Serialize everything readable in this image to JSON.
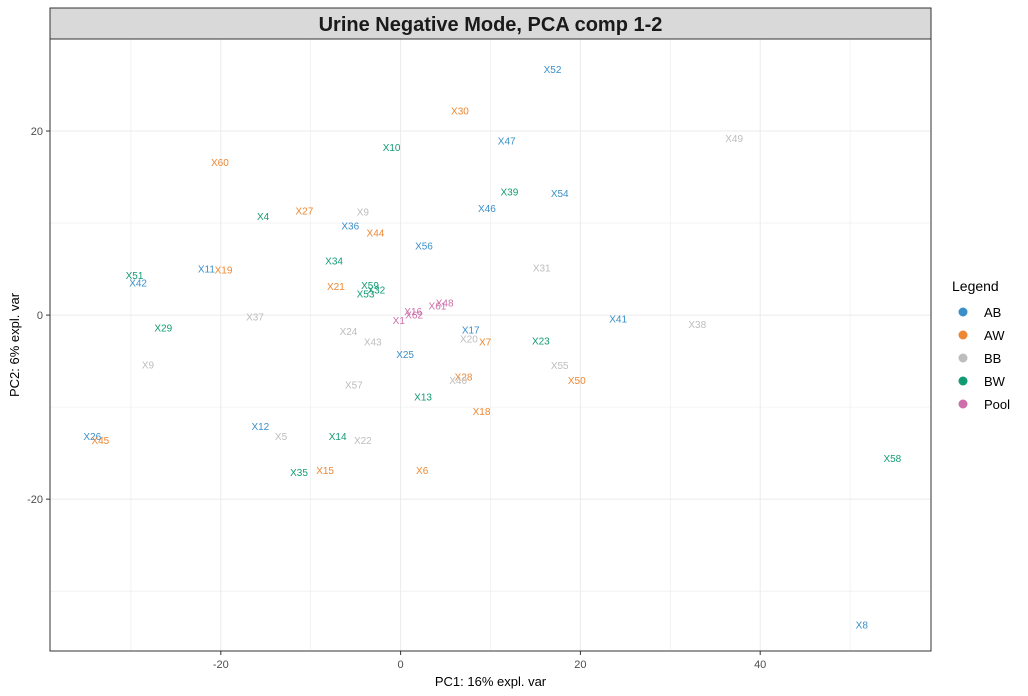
{
  "chart_data": {
    "type": "scatter",
    "title": "Urine Negative Mode, PCA comp 1-2",
    "xlabel": "PC1: 16% expl. var",
    "ylabel": "PC2: 6% expl. var",
    "xlim": [
      -39,
      59
    ],
    "ylim": [
      -36.5,
      30
    ],
    "xticks": [
      -20,
      0,
      20,
      40
    ],
    "yticks": [
      -20,
      0,
      20
    ],
    "grid": true,
    "legend_title": "Legend",
    "legend_position": "right",
    "groups": [
      {
        "name": "AB",
        "color": "#3A8FC9"
      },
      {
        "name": "AW",
        "color": "#EE8733"
      },
      {
        "name": "BB",
        "color": "#BDBDBD"
      },
      {
        "name": "BW",
        "color": "#129B73"
      },
      {
        "name": "Pool",
        "color": "#CD6FAA"
      }
    ],
    "points": [
      {
        "label": "X52",
        "group": "AB",
        "x": 16.9,
        "y": 26.7
      },
      {
        "label": "X47",
        "group": "AB",
        "x": 11.8,
        "y": 18.9
      },
      {
        "label": "X54",
        "group": "AB",
        "x": 17.7,
        "y": 13.2
      },
      {
        "label": "X46",
        "group": "AB",
        "x": 9.6,
        "y": 11.6
      },
      {
        "label": "X36",
        "group": "AB",
        "x": -5.6,
        "y": 9.7
      },
      {
        "label": "X56",
        "group": "AB",
        "x": 2.6,
        "y": 7.5
      },
      {
        "label": "X11",
        "group": "AB",
        "x": -21.6,
        "y": 5.0
      },
      {
        "label": "X42",
        "group": "AB",
        "x": -29.2,
        "y": 3.5
      },
      {
        "label": "X41",
        "group": "AB",
        "x": 24.2,
        "y": -0.4
      },
      {
        "label": "X17",
        "group": "AB",
        "x": 7.8,
        "y": -1.6
      },
      {
        "label": "X25",
        "group": "AB",
        "x": 0.5,
        "y": -4.3
      },
      {
        "label": "X12",
        "group": "AB",
        "x": -15.6,
        "y": -12.1
      },
      {
        "label": "X26",
        "group": "AB",
        "x": -34.3,
        "y": -13.2
      },
      {
        "label": "X8",
        "group": "AB",
        "x": 51.3,
        "y": -33.7
      },
      {
        "label": "X30",
        "group": "AW",
        "x": 6.6,
        "y": 22.2
      },
      {
        "label": "X60",
        "group": "AW",
        "x": -20.1,
        "y": 16.6
      },
      {
        "label": "X27",
        "group": "AW",
        "x": -10.7,
        "y": 11.3
      },
      {
        "label": "X44",
        "group": "AW",
        "x": -2.8,
        "y": 8.9
      },
      {
        "label": "X19",
        "group": "AW",
        "x": -19.7,
        "y": 4.9
      },
      {
        "label": "X21",
        "group": "AW",
        "x": -7.2,
        "y": 3.1
      },
      {
        "label": "X7",
        "group": "AW",
        "x": 9.4,
        "y": -2.9
      },
      {
        "label": "X28",
        "group": "AW",
        "x": 7.0,
        "y": -6.7
      },
      {
        "label": "X50",
        "group": "AW",
        "x": 19.6,
        "y": -7.1
      },
      {
        "label": "X18",
        "group": "AW",
        "x": 9.0,
        "y": -10.5
      },
      {
        "label": "X45",
        "group": "AW",
        "x": -33.4,
        "y": -13.6
      },
      {
        "label": "X15",
        "group": "AW",
        "x": -8.4,
        "y": -16.9
      },
      {
        "label": "X6",
        "group": "AW",
        "x": 2.4,
        "y": -16.9
      },
      {
        "label": "X49",
        "group": "BB",
        "x": 37.1,
        "y": 19.2
      },
      {
        "label": "X9",
        "group": "BB",
        "x": -4.2,
        "y": 11.2
      },
      {
        "label": "X31",
        "group": "BB",
        "x": 15.7,
        "y": 5.1
      },
      {
        "label": "X37",
        "group": "BB",
        "x": -16.2,
        "y": -0.2
      },
      {
        "label": "X38",
        "group": "BB",
        "x": 33.0,
        "y": -1.0
      },
      {
        "label": "X24",
        "group": "BB",
        "x": -5.8,
        "y": -1.8
      },
      {
        "label": "X20",
        "group": "BB",
        "x": 7.6,
        "y": -2.6
      },
      {
        "label": "X43",
        "group": "BB",
        "x": -3.1,
        "y": -2.9
      },
      {
        "label": "X9",
        "group": "BB",
        "x": -28.1,
        "y": -5.4
      },
      {
        "label": "X55",
        "group": "BB",
        "x": 17.7,
        "y": -5.5
      },
      {
        "label": "X57",
        "group": "BB",
        "x": -5.2,
        "y": -7.6
      },
      {
        "label": "X40",
        "group": "BB",
        "x": 6.4,
        "y": -7.1
      },
      {
        "label": "X5",
        "group": "BB",
        "x": -13.3,
        "y": -13.2
      },
      {
        "label": "X22",
        "group": "BB",
        "x": -4.2,
        "y": -13.6
      },
      {
        "label": "X10",
        "group": "BW",
        "x": -1.0,
        "y": 18.2
      },
      {
        "label": "X39",
        "group": "BW",
        "x": 12.1,
        "y": 13.4
      },
      {
        "label": "X4",
        "group": "BW",
        "x": -15.3,
        "y": 10.7
      },
      {
        "label": "X34",
        "group": "BW",
        "x": -7.4,
        "y": 5.9
      },
      {
        "label": "X51",
        "group": "BW",
        "x": -29.6,
        "y": 4.3
      },
      {
        "label": "X59",
        "group": "BW",
        "x": -3.4,
        "y": 3.2
      },
      {
        "label": "X32",
        "group": "BW",
        "x": -2.7,
        "y": 2.7
      },
      {
        "label": "X53",
        "group": "BW",
        "x": -3.9,
        "y": 2.3
      },
      {
        "label": "X29",
        "group": "BW",
        "x": -26.4,
        "y": -1.4
      },
      {
        "label": "X23",
        "group": "BW",
        "x": 15.6,
        "y": -2.8
      },
      {
        "label": "X13",
        "group": "BW",
        "x": 2.5,
        "y": -8.9
      },
      {
        "label": "X14",
        "group": "BW",
        "x": -7.0,
        "y": -13.2
      },
      {
        "label": "X35",
        "group": "BW",
        "x": -11.3,
        "y": -17.1
      },
      {
        "label": "X58",
        "group": "BW",
        "x": 54.7,
        "y": -15.6
      },
      {
        "label": "X48",
        "group": "Pool",
        "x": 4.9,
        "y": 1.3
      },
      {
        "label": "X61",
        "group": "Pool",
        "x": 4.1,
        "y": 1.0
      },
      {
        "label": "X16",
        "group": "Pool",
        "x": 1.4,
        "y": 0.4
      },
      {
        "label": "X62",
        "group": "Pool",
        "x": 1.5,
        "y": 0.0
      },
      {
        "label": "X1",
        "group": "Pool",
        "x": -0.2,
        "y": -0.6
      }
    ]
  }
}
